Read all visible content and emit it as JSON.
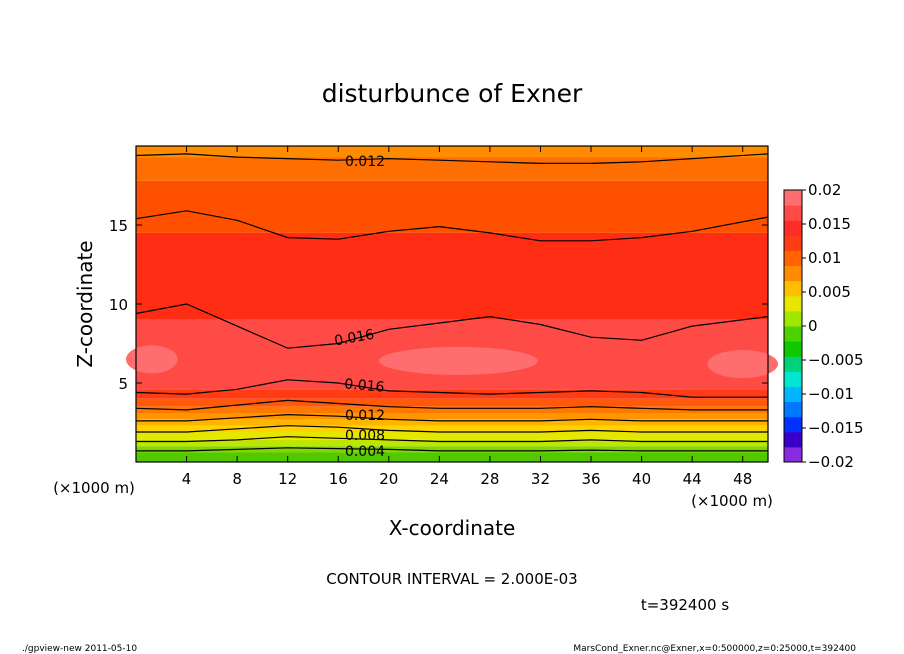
{
  "chart_data": {
    "type": "heatmap",
    "title": "disturbunce of Exner",
    "xlabel": "X-coordinate",
    "ylabel": "Z-coordinate",
    "x_unit": "(×1000 m)",
    "z_unit": "(×1000 m)",
    "xlim": [
      0,
      50
    ],
    "ylim": [
      0,
      20
    ],
    "x_ticks": [
      4,
      8,
      12,
      16,
      20,
      24,
      28,
      32,
      36,
      40,
      44,
      48
    ],
    "y_ticks": [
      5,
      10,
      15
    ],
    "contour_labels": [
      "0.012",
      "0.016",
      "0.016",
      "0.012",
      "0.008",
      "0.004"
    ],
    "contour_interval_text": "CONTOUR INTERVAL = 2.000E-03",
    "time_text": "t=392400 s",
    "colorbar": {
      "range": [
        -0.02,
        0.02
      ],
      "labels": [
        "0.02",
        "0.015",
        "0.01",
        "0.005",
        "0",
        "−0.005",
        "−0.01",
        "−0.015",
        "−0.02"
      ],
      "colors": [
        "#8a2be2",
        "#3a00c8",
        "#0032ff",
        "#0078ff",
        "#00b4ff",
        "#00e6d2",
        "#00d27a",
        "#10c800",
        "#4bd200",
        "#a0e600",
        "#e6e600",
        "#ffbe00",
        "#ff8c00",
        "#ff6400",
        "#ff3c14",
        "#ff2d28",
        "#ff4b46",
        "#ff6e6e"
      ]
    },
    "contour_lines": [
      {
        "label": "0.012",
        "z": [
          19.4,
          19.5,
          19.3,
          19.2,
          19.1,
          19.2,
          19.1,
          19.0,
          18.9,
          18.9,
          19.0,
          19.2,
          19.5
        ]
      },
      {
        "label": "",
        "z": [
          15.4,
          15.9,
          15.3,
          14.2,
          14.1,
          14.6,
          14.9,
          14.5,
          14.0,
          14.0,
          14.2,
          14.6,
          15.5
        ]
      },
      {
        "label": "0.016",
        "z": [
          9.4,
          10.0,
          8.6,
          7.2,
          7.5,
          8.4,
          8.8,
          9.2,
          8.7,
          7.9,
          7.7,
          8.6,
          9.2
        ]
      },
      {
        "label": "0.016",
        "z": [
          4.4,
          4.3,
          4.6,
          5.2,
          5.0,
          4.5,
          4.4,
          4.3,
          4.4,
          4.5,
          4.4,
          4.1,
          4.1
        ]
      },
      {
        "label": "0.012",
        "z": [
          3.4,
          3.3,
          3.6,
          3.9,
          3.7,
          3.5,
          3.4,
          3.4,
          3.4,
          3.5,
          3.4,
          3.3,
          3.3
        ]
      },
      {
        "label": "",
        "z": [
          2.6,
          2.6,
          2.8,
          3.0,
          2.9,
          2.7,
          2.6,
          2.6,
          2.6,
          2.7,
          2.6,
          2.6,
          2.6
        ]
      },
      {
        "label": "0.008",
        "z": [
          1.9,
          1.9,
          2.1,
          2.3,
          2.2,
          2.0,
          1.9,
          1.9,
          1.9,
          2.0,
          1.9,
          1.9,
          1.9
        ]
      },
      {
        "label": "",
        "z": [
          1.3,
          1.3,
          1.4,
          1.6,
          1.5,
          1.4,
          1.3,
          1.3,
          1.3,
          1.4,
          1.3,
          1.3,
          1.3
        ]
      },
      {
        "label": "0.004",
        "z": [
          0.7,
          0.7,
          0.8,
          0.9,
          0.85,
          0.8,
          0.7,
          0.7,
          0.7,
          0.75,
          0.7,
          0.7,
          0.7
        ]
      }
    ],
    "contour_x": [
      0,
      4,
      8,
      12,
      16,
      20,
      24,
      28,
      32,
      36,
      40,
      44,
      50
    ]
  },
  "footer": {
    "left": "./gpview-new  2011-05-10",
    "right": "MarsCond_Exner.nc@Exner,x=0:500000,z=0:25000,t=392400"
  }
}
